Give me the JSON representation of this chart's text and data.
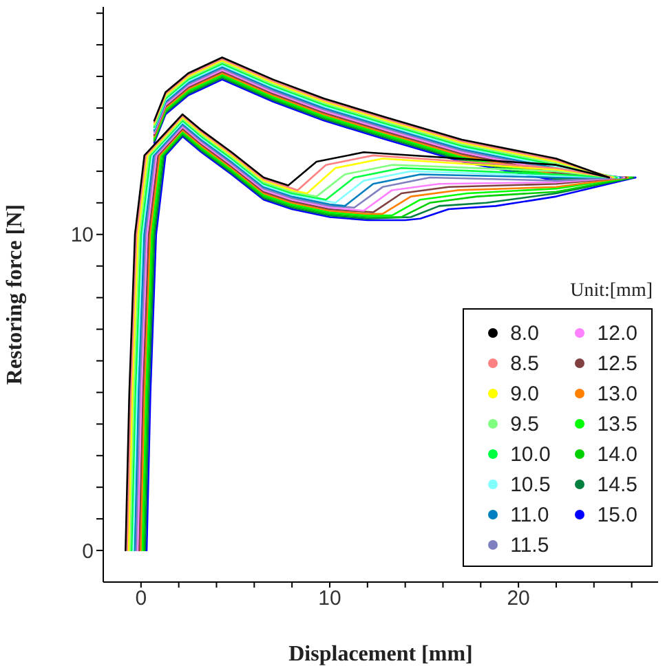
{
  "chart_data": {
    "type": "line",
    "xlabel": "Displacement [mm]",
    "ylabel": "Restoring force [N]",
    "legend_title": "Unit:[mm]",
    "legend": "bottom right",
    "grid": false,
    "xlim": [
      -2,
      27.4
    ],
    "ylim": [
      -1,
      17.2
    ],
    "xticks": [
      0,
      {
        "value": 2,
        "label": null
      },
      {
        "value": 4,
        "label": null
      },
      {
        "value": 6,
        "label": null
      },
      {
        "value": 8,
        "label": null
      },
      10,
      {
        "value": 12,
        "label": null
      },
      {
        "value": 14,
        "label": null
      },
      {
        "value": 16,
        "label": null
      },
      {
        "value": 18,
        "label": null
      },
      20,
      {
        "value": 22,
        "label": null
      },
      {
        "value": 24,
        "label": null
      },
      {
        "value": 26,
        "label": null
      }
    ],
    "yticks": [
      0,
      {
        "value": 1,
        "label": null
      },
      {
        "value": 2,
        "label": null
      },
      {
        "value": 3,
        "label": null
      },
      {
        "value": 4,
        "label": null
      },
      {
        "value": 5,
        "label": null
      },
      {
        "value": 6,
        "label": null
      },
      {
        "value": 7,
        "label": null
      },
      {
        "value": 8,
        "label": null
      },
      {
        "value": 9,
        "label": null
      },
      10,
      {
        "value": 11,
        "label": null
      },
      {
        "value": 12,
        "label": null
      },
      {
        "value": 13,
        "label": null
      },
      {
        "value": 14,
        "label": null
      },
      {
        "value": 15,
        "label": null
      },
      {
        "value": 16,
        "label": null
      },
      {
        "value": 17,
        "label": null
      }
    ],
    "series": [
      {
        "name": "8.0",
        "color": "#000000",
        "x": [
          -0.82,
          -0.62,
          -0.32,
          0.18,
          2.2,
          3.2,
          4.8,
          6.5,
          7.8,
          9.3,
          11.8,
          22,
          24.8
        ],
        "values": [
          0,
          5,
          10,
          12.5,
          13.8,
          13.3,
          12.6,
          11.8,
          11.55,
          12.3,
          12.6,
          12.2,
          11.8
        ]
      },
      {
        "color": "#000000",
        "x": [
          0.7,
          1.3,
          2.5,
          4.3,
          7,
          9.7,
          13,
          17,
          22,
          24.8
        ],
        "values": [
          13.6,
          14.5,
          15.1,
          15.6,
          14.9,
          14.3,
          13.7,
          13,
          12.4,
          11.8
        ]
      },
      {
        "name": "8.5",
        "color": "#ff8080",
        "x": [
          -0.74,
          -0.54,
          -0.24,
          0.26,
          2.2,
          3.2,
          4.8,
          6.5,
          8.3,
          9.8,
          12.3,
          22,
          24.9
        ],
        "values": [
          0,
          5,
          10,
          12.5,
          13.75,
          13.25,
          12.55,
          11.75,
          11.4,
          12.2,
          12.5,
          12.1,
          11.8
        ]
      },
      {
        "color": "#ff8080",
        "x": [
          0.7,
          1.3,
          2.5,
          4.3,
          7,
          9.7,
          13,
          17,
          22,
          24.9
        ],
        "values": [
          13.55,
          14.45,
          15.05,
          15.55,
          14.85,
          14.25,
          13.65,
          12.95,
          12.35,
          11.8
        ]
      },
      {
        "name": "9.0",
        "color": "#ffff00",
        "x": [
          -0.66,
          -0.46,
          -0.16,
          0.34,
          2.2,
          3.2,
          4.8,
          6.5,
          8,
          8.8,
          10.3,
          12.8,
          22,
          25
        ],
        "values": [
          0,
          5,
          10,
          12.5,
          13.7,
          13.2,
          12.5,
          11.7,
          11.4,
          11.3,
          12.1,
          12.4,
          12.05,
          11.8
        ]
      },
      {
        "color": "#ffff00",
        "x": [
          0.7,
          1.3,
          2.5,
          4.3,
          7,
          9.7,
          13,
          17,
          22,
          25
        ],
        "values": [
          13.5,
          14.4,
          15,
          15.5,
          14.8,
          14.2,
          13.6,
          12.9,
          12.3,
          11.8
        ]
      },
      {
        "name": "9.5",
        "color": "#80ff80",
        "x": [
          -0.58,
          -0.38,
          -0.08,
          0.42,
          2.2,
          3.2,
          4.8,
          6.5,
          8,
          9.3,
          10.8,
          13.3,
          22,
          25.1
        ],
        "values": [
          0,
          5,
          10,
          12.5,
          13.65,
          13.15,
          12.45,
          11.65,
          11.35,
          11.2,
          11.9,
          12.2,
          12,
          11.8
        ]
      },
      {
        "color": "#80ff80",
        "x": [
          0.7,
          1.3,
          2.5,
          4.3,
          7,
          9.7,
          13,
          17,
          22,
          25.1
        ],
        "values": [
          13.45,
          14.35,
          14.95,
          15.45,
          14.75,
          14.15,
          13.55,
          12.85,
          12.25,
          11.8
        ]
      },
      {
        "name": "10.0",
        "color": "#00ff40",
        "x": [
          -0.5,
          -0.3,
          0,
          0.5,
          2.2,
          3.2,
          4.8,
          6.5,
          8,
          9.8,
          11.3,
          13.8,
          22,
          25.2
        ],
        "values": [
          0,
          5,
          10,
          12.5,
          13.6,
          13.1,
          12.4,
          11.6,
          11.3,
          11.1,
          11.8,
          12.1,
          11.9,
          11.8
        ]
      },
      {
        "color": "#00ff40",
        "x": [
          0.7,
          1.3,
          2.5,
          4.3,
          7,
          9.7,
          13,
          17,
          22,
          25.2
        ],
        "values": [
          13.4,
          14.3,
          14.9,
          15.4,
          14.7,
          14.1,
          13.5,
          12.8,
          12.2,
          11.8
        ]
      },
      {
        "name": "10.5",
        "color": "#80ffff",
        "x": [
          -0.42,
          -0.22,
          0.08,
          0.58,
          2.2,
          3.2,
          4.8,
          6.5,
          8,
          10.3,
          11.8,
          14.3,
          22,
          25.3
        ],
        "values": [
          0,
          5,
          10,
          12.5,
          13.55,
          13.05,
          12.35,
          11.55,
          11.25,
          11,
          11.7,
          12,
          11.85,
          11.8
        ]
      },
      {
        "color": "#80ffff",
        "x": [
          0.7,
          1.3,
          2.5,
          4.3,
          7,
          9.7,
          13,
          17,
          22,
          25.3
        ],
        "values": [
          13.35,
          14.25,
          14.85,
          15.35,
          14.65,
          14.05,
          13.45,
          12.75,
          12.15,
          11.8
        ]
      },
      {
        "name": "11.0",
        "color": "#0080c0",
        "x": [
          -0.34,
          -0.14,
          0.16,
          0.66,
          2.2,
          3.2,
          4.8,
          6.5,
          8,
          10,
          10.8,
          12.3,
          14.8,
          22,
          25.4
        ],
        "values": [
          0,
          5,
          10,
          12.5,
          13.5,
          13,
          12.3,
          11.5,
          11.2,
          10.95,
          10.9,
          11.6,
          11.9,
          11.8,
          11.8
        ]
      },
      {
        "color": "#0080c0",
        "x": [
          0.7,
          1.3,
          2.5,
          4.3,
          7,
          9.7,
          13,
          17,
          22,
          25.4
        ],
        "values": [
          13.3,
          14.2,
          14.8,
          15.3,
          14.6,
          14,
          13.4,
          12.7,
          12.1,
          11.8
        ]
      },
      {
        "name": "11.5",
        "color": "#8080c0",
        "x": [
          -0.26,
          -0.06,
          0.24,
          0.74,
          2.2,
          3.2,
          4.8,
          6.5,
          8,
          10,
          11.3,
          12.8,
          15.3,
          22,
          25.5
        ],
        "values": [
          0,
          5,
          10,
          12.5,
          13.45,
          12.95,
          12.25,
          11.45,
          11.15,
          10.9,
          10.85,
          11.5,
          11.8,
          11.7,
          11.8
        ]
      },
      {
        "color": "#8080c0",
        "x": [
          0.7,
          1.3,
          2.5,
          4.3,
          7,
          9.7,
          13,
          17,
          22,
          25.5
        ],
        "values": [
          13.25,
          14.15,
          14.75,
          15.25,
          14.55,
          13.95,
          13.35,
          12.65,
          12.05,
          11.8
        ]
      },
      {
        "name": "12.0",
        "color": "#ff80ff",
        "x": [
          -0.18,
          0.02,
          0.32,
          0.82,
          2.2,
          3.2,
          4.8,
          6.5,
          8,
          10,
          11.8,
          13.3,
          15.8,
          22,
          25.6
        ],
        "values": [
          0,
          5,
          10,
          12.5,
          13.4,
          12.9,
          12.2,
          11.4,
          11.1,
          10.85,
          10.75,
          11.4,
          11.6,
          11.65,
          11.8
        ]
      },
      {
        "color": "#ff80ff",
        "x": [
          0.7,
          1.3,
          2.5,
          4.3,
          7,
          9.7,
          13,
          17,
          22,
          25.6
        ],
        "values": [
          13.2,
          14.1,
          14.7,
          15.2,
          14.5,
          13.9,
          13.3,
          12.6,
          12,
          11.8
        ]
      },
      {
        "name": "12.5",
        "color": "#804040",
        "x": [
          -0.1,
          0.1,
          0.4,
          0.9,
          2.2,
          3.2,
          4.8,
          6.5,
          8,
          10,
          12.3,
          13.8,
          16.3,
          22,
          25.7
        ],
        "values": [
          0,
          5,
          10,
          12.5,
          13.35,
          12.85,
          12.15,
          11.35,
          11.05,
          10.8,
          10.7,
          11.3,
          11.5,
          11.6,
          11.8
        ]
      },
      {
        "color": "#804040",
        "x": [
          0.7,
          1.3,
          2.5,
          4.3,
          7,
          9.7,
          13,
          17,
          22,
          25.7
        ],
        "values": [
          13.15,
          14.05,
          14.65,
          15.15,
          14.45,
          13.85,
          13.25,
          12.55,
          11.95,
          11.8
        ]
      },
      {
        "name": "13.0",
        "color": "#ff8000",
        "x": [
          -0.02,
          0.18,
          0.48,
          0.98,
          2.2,
          3.2,
          4.8,
          6.5,
          8,
          10,
          12,
          12.8,
          14.3,
          16.8,
          22,
          25.8
        ],
        "values": [
          0,
          5,
          10,
          12.5,
          13.3,
          12.8,
          12.1,
          11.3,
          11,
          10.75,
          10.65,
          10.65,
          11.2,
          11.4,
          11.5,
          11.8
        ]
      },
      {
        "color": "#ff8000",
        "x": [
          0.7,
          1.3,
          2.5,
          4.3,
          7,
          9.7,
          13,
          17,
          22,
          25.8
        ],
        "values": [
          13.1,
          14,
          14.6,
          15.1,
          14.4,
          13.8,
          13.2,
          12.5,
          11.9,
          11.8
        ]
      },
      {
        "name": "13.5",
        "color": "#00ff00",
        "x": [
          0.06,
          0.26,
          0.56,
          1.06,
          2.2,
          3.2,
          4.8,
          6.5,
          8,
          10,
          12,
          13.3,
          14.8,
          17.3,
          22,
          25.9
        ],
        "values": [
          0,
          5,
          10,
          12.5,
          13.25,
          12.75,
          12.05,
          11.25,
          10.95,
          10.7,
          10.6,
          10.6,
          11.1,
          11.3,
          11.45,
          11.8
        ]
      },
      {
        "color": "#00ff00",
        "x": [
          0.7,
          1.3,
          2.5,
          4.3,
          7,
          9.7,
          13,
          17,
          22,
          25.9
        ],
        "values": [
          13.05,
          13.95,
          14.55,
          15.05,
          14.35,
          13.75,
          13.15,
          12.45,
          11.85,
          11.8
        ]
      },
      {
        "name": "14.0",
        "color": "#00d000",
        "x": [
          0.14,
          0.34,
          0.64,
          1.14,
          2.2,
          3.2,
          4.8,
          6.5,
          8,
          10,
          12,
          13.8,
          15.3,
          17.8,
          22,
          26
        ],
        "values": [
          0,
          5,
          10,
          12.5,
          13.2,
          12.7,
          12,
          11.2,
          10.9,
          10.65,
          10.55,
          10.55,
          11,
          11.2,
          11.35,
          11.8
        ]
      },
      {
        "color": "#00d000",
        "x": [
          0.7,
          1.3,
          2.5,
          4.3,
          7,
          9.7,
          13,
          17,
          22,
          26
        ],
        "values": [
          13,
          13.9,
          14.5,
          15,
          14.3,
          13.7,
          13.1,
          12.4,
          11.8,
          11.8
        ]
      },
      {
        "name": "14.5",
        "color": "#008040",
        "x": [
          0.22,
          0.42,
          0.72,
          1.22,
          2.2,
          3.2,
          4.8,
          6.5,
          8,
          10,
          12,
          14.3,
          15.8,
          18.3,
          22,
          26.1
        ],
        "values": [
          0,
          5,
          10,
          12.5,
          13.15,
          12.65,
          11.95,
          11.15,
          10.85,
          10.6,
          10.5,
          10.55,
          10.9,
          11,
          11.3,
          11.8
        ]
      },
      {
        "color": "#008040",
        "x": [
          0.7,
          1.3,
          2.5,
          4.3,
          7,
          9.7,
          13,
          17,
          22,
          26.1
        ],
        "values": [
          12.95,
          13.85,
          14.45,
          14.95,
          14.25,
          13.65,
          13.05,
          12.35,
          11.75,
          11.8
        ]
      },
      {
        "name": "15.0",
        "color": "#0000ff",
        "x": [
          0.3,
          0.5,
          0.8,
          1.3,
          2.2,
          3.2,
          4.8,
          6.5,
          8,
          10,
          12,
          14,
          14.8,
          16.3,
          18.8,
          22,
          26.2
        ],
        "values": [
          0,
          5,
          10,
          12.5,
          13.1,
          12.6,
          11.9,
          11.1,
          10.8,
          10.55,
          10.45,
          10.45,
          10.5,
          10.8,
          10.9,
          11.2,
          11.8
        ]
      },
      {
        "color": "#0000ff",
        "x": [
          0.7,
          1.3,
          2.5,
          4.3,
          7,
          9.7,
          13,
          17,
          22,
          26.2
        ],
        "values": [
          12.9,
          13.8,
          14.4,
          14.9,
          14.2,
          13.6,
          13,
          12.3,
          11.7,
          11.8
        ]
      }
    ]
  }
}
